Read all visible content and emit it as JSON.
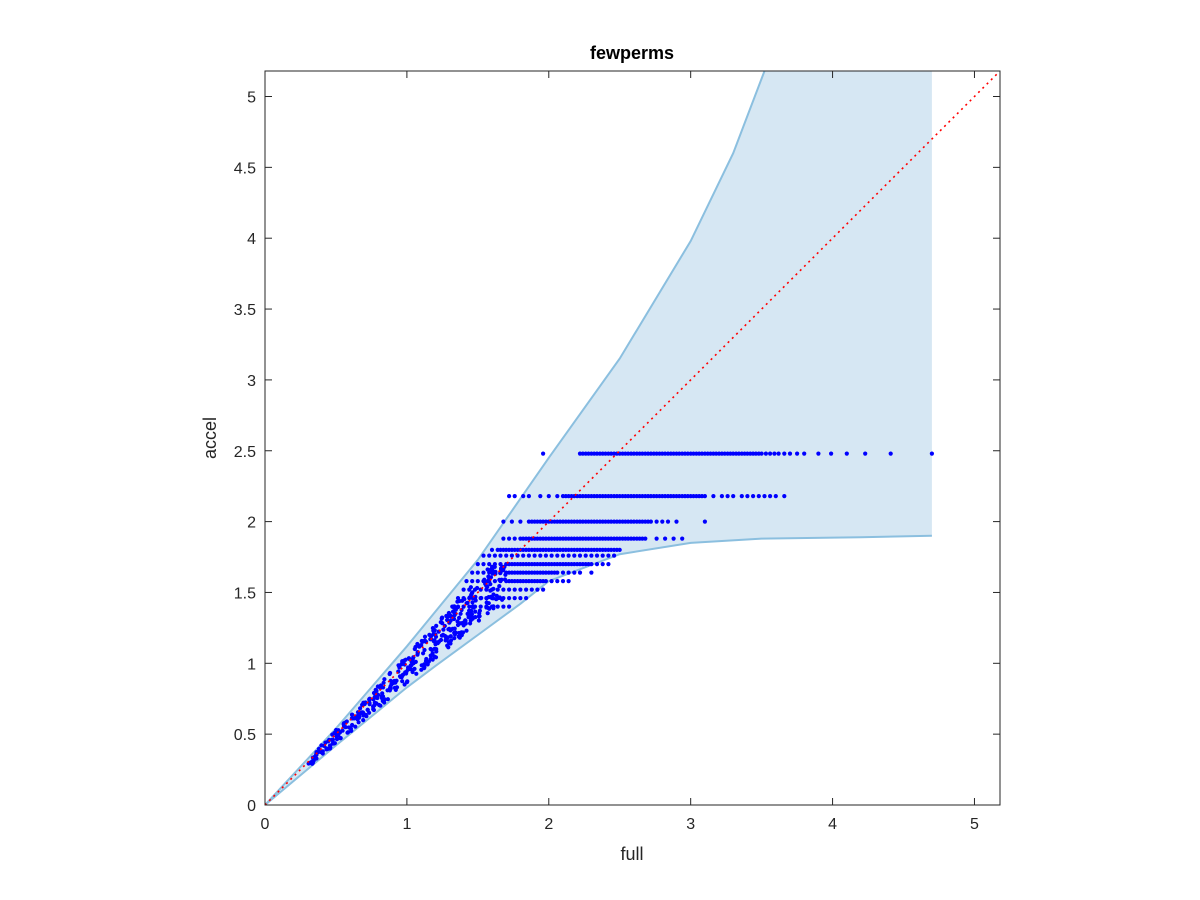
{
  "chart_data": {
    "type": "scatter",
    "title": "fewperms",
    "xlabel": "full",
    "ylabel": "accel",
    "xlim": [
      0,
      5.18
    ],
    "ylim": [
      0,
      5.18
    ],
    "xticks": [
      0,
      1,
      2,
      3,
      4,
      5
    ],
    "yticks": [
      0,
      0.5,
      1,
      1.5,
      2,
      2.5,
      3,
      3.5,
      4,
      4.5,
      5
    ],
    "xtick_labels": [
      "0",
      "1",
      "2",
      "3",
      "4",
      "5"
    ],
    "ytick_labels": [
      "0",
      "0.5",
      "1",
      "1.5",
      "2",
      "2.5",
      "3",
      "3.5",
      "4",
      "4.5",
      "5"
    ],
    "grid": false,
    "box": true,
    "colors": {
      "points": "#0000ff",
      "band_fill": "#d6e7f3",
      "band_edge": "#8bbfdf",
      "reference_line": "#ff0000",
      "axes": "#262626"
    },
    "band": {
      "upper": [
        [
          0,
          0
        ],
        [
          0.5,
          0.54
        ],
        [
          1,
          1.12
        ],
        [
          1.5,
          1.73
        ],
        [
          2,
          2.45
        ],
        [
          2.5,
          3.15
        ],
        [
          3,
          3.98
        ],
        [
          3.3,
          4.6
        ],
        [
          3.52,
          5.18
        ],
        [
          4.7,
          5.18
        ]
      ],
      "lower": [
        [
          4.7,
          1.9
        ],
        [
          4.2,
          1.89
        ],
        [
          3.5,
          1.88
        ],
        [
          3,
          1.85
        ],
        [
          2.5,
          1.77
        ],
        [
          2,
          1.58
        ],
        [
          1.8,
          1.42
        ],
        [
          1.5,
          1.2
        ],
        [
          1.2,
          0.98
        ],
        [
          1,
          0.83
        ],
        [
          0.5,
          0.42
        ],
        [
          0,
          0
        ]
      ]
    },
    "reference_line": {
      "x": [
        0,
        5.18
      ],
      "y": [
        0,
        5.18
      ],
      "style": "dotted"
    },
    "series": [
      {
        "diagonal_cloud": {
          "x_start": 0.3,
          "x_end": 1.7,
          "count": 400
        },
        "rows": [
          {
            "y": 2.48,
            "x": [
              1.96,
              2.22,
              2.24,
              2.26,
              2.28,
              2.3,
              2.32,
              2.34,
              2.36,
              2.38,
              2.4,
              2.42,
              2.44,
              2.46,
              2.48,
              2.5,
              2.52,
              2.54,
              2.56,
              2.58,
              2.6,
              2.62,
              2.64,
              2.66,
              2.68,
              2.7,
              2.72,
              2.74,
              2.76,
              2.78,
              2.8,
              2.82,
              2.84,
              2.86,
              2.88,
              2.9,
              2.92,
              2.94,
              2.96,
              2.98,
              3.0,
              3.02,
              3.04,
              3.06,
              3.08,
              3.1,
              3.12,
              3.14,
              3.16,
              3.18,
              3.2,
              3.22,
              3.24,
              3.26,
              3.28,
              3.3,
              3.32,
              3.34,
              3.36,
              3.38,
              3.4,
              3.42,
              3.44,
              3.46,
              3.48,
              3.5,
              3.53,
              3.56,
              3.59,
              3.62,
              3.66,
              3.7,
              3.75,
              3.8,
              3.9,
              3.99,
              4.1,
              4.23,
              4.41,
              4.7
            ]
          },
          {
            "y": 2.18,
            "x": [
              1.72,
              1.76,
              1.82,
              1.86,
              1.94,
              2.0,
              2.06,
              2.1,
              2.12,
              2.14,
              2.16,
              2.18,
              2.2,
              2.22,
              2.24,
              2.26,
              2.28,
              2.3,
              2.32,
              2.34,
              2.36,
              2.38,
              2.4,
              2.42,
              2.44,
              2.46,
              2.48,
              2.5,
              2.52,
              2.54,
              2.56,
              2.58,
              2.6,
              2.62,
              2.64,
              2.66,
              2.68,
              2.7,
              2.72,
              2.74,
              2.76,
              2.78,
              2.8,
              2.82,
              2.84,
              2.86,
              2.88,
              2.9,
              2.92,
              2.94,
              2.96,
              2.98,
              3.0,
              3.02,
              3.04,
              3.06,
              3.08,
              3.1,
              3.16,
              3.22,
              3.26,
              3.3,
              3.36,
              3.4,
              3.44,
              3.48,
              3.52,
              3.56,
              3.6,
              3.66
            ]
          },
          {
            "y": 2.0,
            "x": [
              1.68,
              1.74,
              1.8,
              1.86,
              1.88,
              1.9,
              1.92,
              1.94,
              1.96,
              1.98,
              2.0,
              2.02,
              2.04,
              2.06,
              2.08,
              2.1,
              2.12,
              2.14,
              2.16,
              2.18,
              2.2,
              2.22,
              2.24,
              2.26,
              2.28,
              2.3,
              2.32,
              2.34,
              2.36,
              2.38,
              2.4,
              2.42,
              2.44,
              2.46,
              2.48,
              2.5,
              2.52,
              2.54,
              2.56,
              2.58,
              2.6,
              2.62,
              2.64,
              2.66,
              2.68,
              2.7,
              2.72,
              2.76,
              2.8,
              2.84,
              2.9,
              3.1
            ]
          },
          {
            "y": 1.88,
            "x": [
              1.68,
              1.72,
              1.76,
              1.8,
              1.82,
              1.84,
              1.86,
              1.88,
              1.9,
              1.92,
              1.94,
              1.96,
              1.98,
              2.0,
              2.02,
              2.04,
              2.06,
              2.08,
              2.1,
              2.12,
              2.14,
              2.16,
              2.18,
              2.2,
              2.22,
              2.24,
              2.26,
              2.28,
              2.3,
              2.32,
              2.34,
              2.36,
              2.38,
              2.4,
              2.42,
              2.44,
              2.46,
              2.48,
              2.5,
              2.52,
              2.54,
              2.56,
              2.58,
              2.6,
              2.62,
              2.64,
              2.66,
              2.68,
              2.76,
              2.82,
              2.88,
              2.94
            ]
          },
          {
            "y": 1.8,
            "x": [
              1.6,
              1.64,
              1.66,
              1.68,
              1.7,
              1.72,
              1.74,
              1.76,
              1.78,
              1.8,
              1.82,
              1.84,
              1.86,
              1.88,
              1.9,
              1.92,
              1.94,
              1.96,
              1.98,
              2.0,
              2.02,
              2.04,
              2.06,
              2.08,
              2.1,
              2.12,
              2.14,
              2.16,
              2.18,
              2.2,
              2.22,
              2.24,
              2.26,
              2.28,
              2.3,
              2.32,
              2.34,
              2.36,
              2.38,
              2.4,
              2.42,
              2.44,
              2.46,
              2.48,
              2.5
            ]
          },
          {
            "y": 1.76,
            "x": [
              1.54,
              1.58,
              1.62,
              1.66,
              1.7,
              1.74,
              1.78,
              1.82,
              1.86,
              1.9,
              1.94,
              1.98,
              2.02,
              2.06,
              2.1,
              2.14,
              2.18,
              2.22,
              2.26,
              2.3,
              2.34,
              2.38,
              2.42,
              2.46
            ]
          },
          {
            "y": 1.7,
            "x": [
              1.5,
              1.54,
              1.58,
              1.62,
              1.66,
              1.7,
              1.72,
              1.74,
              1.76,
              1.78,
              1.8,
              1.82,
              1.84,
              1.86,
              1.88,
              1.9,
              1.92,
              1.94,
              1.96,
              1.98,
              2.0,
              2.02,
              2.04,
              2.06,
              2.08,
              2.1,
              2.12,
              2.14,
              2.16,
              2.18,
              2.2,
              2.22,
              2.24,
              2.26,
              2.28,
              2.3,
              2.34,
              2.38,
              2.42
            ]
          },
          {
            "y": 1.64,
            "x": [
              1.46,
              1.5,
              1.54,
              1.58,
              1.62,
              1.66,
              1.7,
              1.72,
              1.74,
              1.76,
              1.78,
              1.8,
              1.82,
              1.84,
              1.86,
              1.88,
              1.9,
              1.92,
              1.94,
              1.96,
              1.98,
              2.0,
              2.02,
              2.04,
              2.06,
              2.1,
              2.14,
              2.18,
              2.22,
              2.3
            ]
          },
          {
            "y": 1.58,
            "x": [
              1.42,
              1.46,
              1.5,
              1.54,
              1.58,
              1.62,
              1.66,
              1.7,
              1.72,
              1.74,
              1.76,
              1.78,
              1.8,
              1.82,
              1.84,
              1.86,
              1.88,
              1.9,
              1.92,
              1.94,
              1.96,
              1.98,
              2.02,
              2.06,
              2.1,
              2.14
            ]
          },
          {
            "y": 1.52,
            "x": [
              1.4,
              1.44,
              1.48,
              1.52,
              1.56,
              1.6,
              1.64,
              1.68,
              1.72,
              1.76,
              1.8,
              1.84,
              1.88,
              1.92,
              1.96
            ]
          },
          {
            "y": 1.46,
            "x": [
              1.36,
              1.4,
              1.44,
              1.48,
              1.52,
              1.56,
              1.6,
              1.64,
              1.68,
              1.72,
              1.76,
              1.8,
              1.84
            ]
          },
          {
            "y": 1.4,
            "x": [
              1.32,
              1.36,
              1.4,
              1.44,
              1.48,
              1.52,
              1.56,
              1.6,
              1.64,
              1.68,
              1.72
            ]
          }
        ]
      }
    ]
  }
}
